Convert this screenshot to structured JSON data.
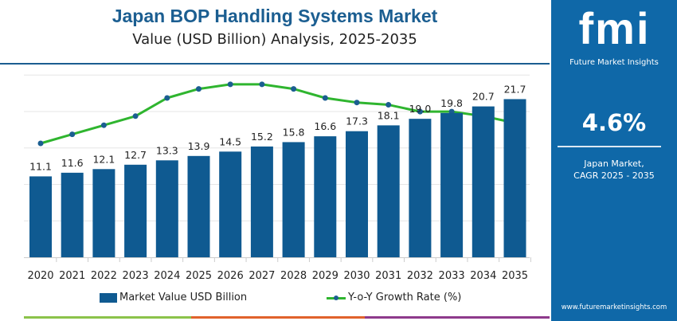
{
  "header": {
    "title": "Japan BOP Handling Systems Market",
    "subtitle": "Value (USD Billion) Analysis, 2025-2035"
  },
  "panel": {
    "logo": "fmi",
    "logo_text": "Future Market Insights",
    "cagr_value": "4.6%",
    "cagr_label_1": "Japan Market,",
    "cagr_label_2": "CAGR 2025 - 2035",
    "website": "www.futuremarketinsights.com"
  },
  "colors": {
    "bar": "#0f5a91",
    "line": "#2fb52f",
    "marker": "#1b5e91",
    "panel": "#0f68a8"
  },
  "chart_data": {
    "type": "bar+line",
    "categories": [
      "2020",
      "2021",
      "2022",
      "2023",
      "2024",
      "2025",
      "2026",
      "2027",
      "2028",
      "2029",
      "2030",
      "2031",
      "2032",
      "2033",
      "2034",
      "2035"
    ],
    "series": [
      {
        "name": "Market Value USD Billion",
        "type": "bar",
        "values": [
          11.1,
          11.6,
          12.1,
          12.7,
          13.3,
          13.9,
          14.5,
          15.2,
          15.8,
          16.6,
          17.3,
          18.1,
          19.0,
          19.8,
          20.7,
          21.7
        ],
        "labels": [
          "11.1",
          "11.6",
          "12.1",
          "12.7",
          "13.3",
          "13.9",
          "14.5",
          "15.2",
          "15.8",
          "16.6",
          "17.3",
          "18.1",
          "19.0",
          "19.8",
          "20.7",
          "21.7"
        ]
      },
      {
        "name": "Y-o-Y Growth Rate (%)",
        "type": "line",
        "values": [
          4.2,
          4.4,
          4.6,
          4.8,
          5.2,
          5.4,
          5.5,
          5.5,
          5.4,
          5.2,
          5.1,
          5.05,
          4.9,
          4.9,
          4.8,
          4.65
        ]
      }
    ],
    "grid": true,
    "legend": "bottom"
  }
}
